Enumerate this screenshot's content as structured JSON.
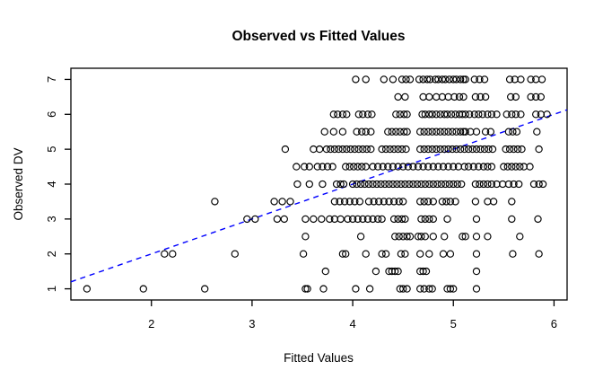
{
  "window": {
    "background": "#ffffff",
    "foreground": "#000000"
  },
  "chart_data": {
    "type": "scatter",
    "title": "Observed vs Fitted Values",
    "xlabel": "Fitted Values",
    "ylabel": "Observed DV",
    "x_ticks": [
      2,
      3,
      4,
      5,
      6
    ],
    "y_ticks": [
      1,
      2,
      3,
      4,
      5,
      6,
      7
    ],
    "xlim": [
      1.2,
      6.13
    ],
    "ylim": [
      0.68,
      7.32
    ],
    "grid": false,
    "legend": false,
    "point_style": "open-circle",
    "point_color": "#000000",
    "reference_line": {
      "style": "dashed",
      "color": "#0000ff",
      "slope": 1,
      "intercept": 0
    },
    "rows": [
      {
        "y": 7,
        "x": [
          4.03,
          4.13,
          4.31,
          4.4,
          4.49,
          4.53,
          4.57,
          4.66,
          4.7,
          4.74,
          4.77,
          4.82,
          4.85,
          4.89,
          4.92,
          4.96,
          5.0,
          5.03,
          5.07,
          5.1,
          5.12,
          5.21,
          5.26,
          5.31,
          5.56,
          5.61,
          5.67,
          5.77,
          5.82,
          5.88
        ]
      },
      {
        "y": 6.5,
        "x": [
          4.45,
          4.52,
          4.7,
          4.76,
          4.83,
          4.89,
          4.95,
          5.01,
          5.06,
          5.1,
          5.22,
          5.27,
          5.32,
          5.57,
          5.62,
          5.77,
          5.82,
          5.87
        ]
      },
      {
        "y": 6,
        "x": [
          3.81,
          3.85,
          3.9,
          3.94,
          4.06,
          4.1,
          4.15,
          4.19,
          4.43,
          4.47,
          4.51,
          4.54,
          4.69,
          4.72,
          4.76,
          4.79,
          4.83,
          4.87,
          4.91,
          4.94,
          4.98,
          5.02,
          5.06,
          5.09,
          5.12,
          5.16,
          5.21,
          5.25,
          5.29,
          5.34,
          5.38,
          5.43,
          5.53,
          5.58,
          5.62,
          5.67,
          5.82,
          5.87,
          5.93
        ]
      },
      {
        "y": 5.5,
        "x": [
          3.72,
          3.81,
          3.9,
          4.04,
          4.09,
          4.13,
          4.18,
          4.35,
          4.39,
          4.43,
          4.47,
          4.51,
          4.54,
          4.67,
          4.71,
          4.75,
          4.79,
          4.83,
          4.87,
          4.91,
          4.95,
          4.99,
          5.03,
          5.07,
          5.1,
          5.12,
          5.17,
          5.23,
          5.32,
          5.37,
          5.55,
          5.59,
          5.63,
          5.83
        ]
      },
      {
        "y": 5,
        "x": [
          3.33,
          3.61,
          3.67,
          3.74,
          3.78,
          3.82,
          3.86,
          3.9,
          3.94,
          3.98,
          4.02,
          4.06,
          4.1,
          4.14,
          4.18,
          4.29,
          4.33,
          4.37,
          4.41,
          4.45,
          4.49,
          4.53,
          4.67,
          4.71,
          4.75,
          4.79,
          4.83,
          4.87,
          4.91,
          4.95,
          4.99,
          5.03,
          5.07,
          5.11,
          5.15,
          5.19,
          5.23,
          5.27,
          5.31,
          5.35,
          5.39,
          5.52,
          5.56,
          5.6,
          5.64,
          5.68,
          5.85
        ]
      },
      {
        "y": 4.5,
        "x": [
          3.44,
          3.52,
          3.57,
          3.65,
          3.7,
          3.75,
          3.8,
          3.93,
          3.97,
          4.01,
          4.05,
          4.09,
          4.13,
          4.2,
          4.25,
          4.3,
          4.35,
          4.4,
          4.45,
          4.5,
          4.55,
          4.6,
          4.65,
          4.7,
          4.75,
          4.8,
          4.85,
          4.9,
          4.95,
          5.0,
          5.05,
          5.11,
          5.15,
          5.2,
          5.25,
          5.3,
          5.34,
          5.38,
          5.5,
          5.54,
          5.58,
          5.62,
          5.66,
          5.7,
          5.76
        ]
      },
      {
        "y": 4,
        "x": [
          3.45,
          3.57,
          3.7,
          3.84,
          3.88,
          3.91,
          4.0,
          4.04,
          4.08,
          4.12,
          4.16,
          4.2,
          4.24,
          4.28,
          4.32,
          4.36,
          4.4,
          4.44,
          4.48,
          4.52,
          4.56,
          4.6,
          4.64,
          4.68,
          4.72,
          4.76,
          4.8,
          4.84,
          4.88,
          4.92,
          4.96,
          5.0,
          5.04,
          5.08,
          5.22,
          5.26,
          5.3,
          5.34,
          5.38,
          5.43,
          5.49,
          5.55,
          5.6,
          5.65,
          5.8,
          5.85,
          5.89
        ]
      },
      {
        "y": 3.5,
        "x": [
          2.63,
          3.22,
          3.3,
          3.38,
          3.82,
          3.87,
          3.92,
          3.97,
          4.02,
          4.07,
          4.16,
          4.21,
          4.26,
          4.31,
          4.36,
          4.41,
          4.46,
          4.5,
          4.67,
          4.71,
          4.75,
          4.8,
          4.89,
          4.93,
          4.97,
          5.02,
          5.22,
          5.34,
          5.4,
          5.58
        ]
      },
      {
        "y": 3,
        "x": [
          2.95,
          3.03,
          3.25,
          3.32,
          3.53,
          3.61,
          3.69,
          3.77,
          3.82,
          3.88,
          3.95,
          4.0,
          4.05,
          4.1,
          4.15,
          4.2,
          4.25,
          4.29,
          4.41,
          4.45,
          4.49,
          4.52,
          4.68,
          4.72,
          4.76,
          4.8,
          4.94,
          5.23,
          5.58,
          5.84
        ]
      },
      {
        "y": 2.5,
        "x": [
          3.53,
          4.08,
          4.42,
          4.46,
          4.5,
          4.54,
          4.57,
          4.65,
          4.68,
          4.72,
          4.8,
          4.91,
          5.09,
          5.12,
          5.23,
          5.34,
          5.66
        ]
      },
      {
        "y": 2,
        "x": [
          2.13,
          2.21,
          2.83,
          3.51,
          3.9,
          3.93,
          4.13,
          4.29,
          4.33,
          4.48,
          4.52,
          4.67,
          4.76,
          4.9,
          4.97,
          5.23,
          5.59,
          5.85
        ]
      },
      {
        "y": 1.5,
        "x": [
          3.73,
          4.23,
          4.36,
          4.39,
          4.42,
          4.45,
          4.67,
          4.7,
          4.73,
          5.23
        ]
      },
      {
        "y": 1,
        "x": [
          1.36,
          1.92,
          2.53,
          3.53,
          3.55,
          3.71,
          4.03,
          4.17,
          4.47,
          4.5,
          4.54,
          4.67,
          4.71,
          4.76,
          4.79,
          4.94,
          4.97,
          5.0,
          5.23
        ]
      }
    ]
  }
}
